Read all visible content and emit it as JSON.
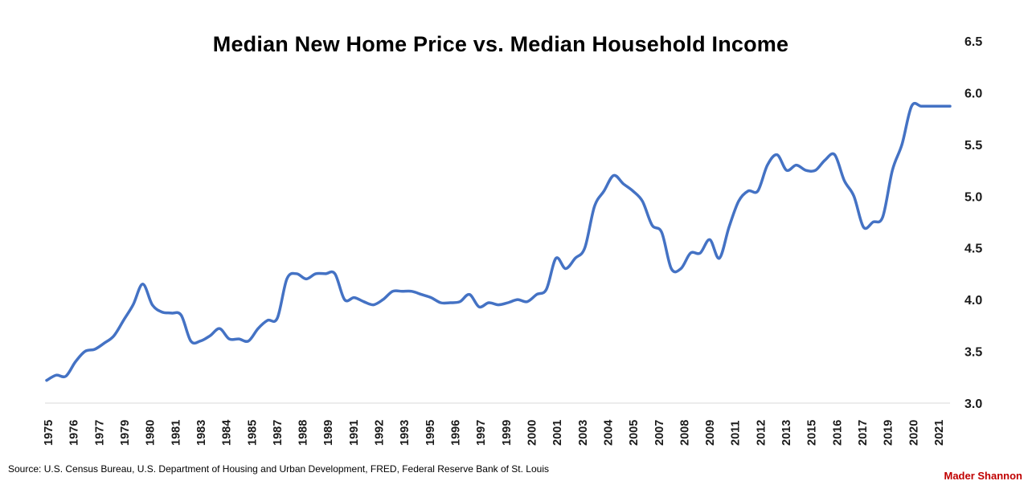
{
  "chart_data": {
    "type": "line",
    "title": "Median New Home Price vs. Median Household Income",
    "xlabel": "",
    "ylabel": "",
    "ylim": [
      3.0,
      6.5
    ],
    "y_ticks": [
      "3.0",
      "3.5",
      "4.0",
      "4.5",
      "5.0",
      "5.5",
      "6.0",
      "6.5"
    ],
    "y_axis_side": "right",
    "grid": false,
    "legend": "none",
    "line_color": "#4472c4",
    "x_tick_labels": [
      "1975",
      "1976",
      "1977",
      "1979",
      "1980",
      "1981",
      "1983",
      "1984",
      "1985",
      "1987",
      "1988",
      "1989",
      "1991",
      "1992",
      "1993",
      "1995",
      "1996",
      "1997",
      "1999",
      "2000",
      "2001",
      "2003",
      "2004",
      "2005",
      "2007",
      "2008",
      "2009",
      "2011",
      "2012",
      "2013",
      "2015",
      "2016",
      "2017",
      "2019",
      "2020",
      "2021"
    ],
    "series": [
      {
        "x": [
          1975.0,
          1975.5,
          1976.0,
          1976.5,
          1977.0,
          1977.5,
          1978.0,
          1978.5,
          1979.0,
          1979.5,
          1980.0,
          1980.5,
          1981.0,
          1981.5,
          1982.0,
          1982.5,
          1983.0,
          1983.5,
          1984.0,
          1984.5,
          1985.0,
          1985.5,
          1986.0,
          1986.5,
          1987.0,
          1987.5,
          1988.0,
          1988.5,
          1989.0,
          1989.5,
          1990.0,
          1990.5,
          1991.0,
          1991.5,
          1992.0,
          1992.5,
          1993.0,
          1993.5,
          1994.0,
          1994.5,
          1995.0,
          1995.5,
          1996.0,
          1996.5,
          1997.0,
          1997.5,
          1998.0,
          1998.5,
          1999.0,
          1999.5,
          2000.0,
          2000.5,
          2001.0,
          2001.5,
          2002.0,
          2002.5,
          2003.0,
          2003.5,
          2004.0,
          2004.5,
          2005.0,
          2005.5,
          2006.0,
          2006.5,
          2007.0,
          2007.5,
          2008.0,
          2008.5,
          2009.0,
          2009.5,
          2010.0,
          2010.5,
          2011.0,
          2011.5,
          2012.0,
          2012.5,
          2013.0,
          2013.5,
          2014.0,
          2014.5,
          2015.0,
          2015.5,
          2016.0,
          2016.5,
          2017.0,
          2017.5,
          2018.0,
          2018.5,
          2019.0,
          2019.5,
          2020.0,
          2020.5,
          2021.0,
          2021.5,
          2022.0
        ],
        "y": [
          3.22,
          3.27,
          3.26,
          3.4,
          3.5,
          3.52,
          3.58,
          3.65,
          3.8,
          3.95,
          4.15,
          3.95,
          3.88,
          3.87,
          3.85,
          3.6,
          3.6,
          3.65,
          3.72,
          3.62,
          3.62,
          3.6,
          3.72,
          3.8,
          3.82,
          4.2,
          4.25,
          4.2,
          4.25,
          4.25,
          4.25,
          4.0,
          4.02,
          3.98,
          3.95,
          4.0,
          4.08,
          4.08,
          4.08,
          4.05,
          4.02,
          3.97,
          3.97,
          3.98,
          4.05,
          3.93,
          3.97,
          3.95,
          3.97,
          4.0,
          3.98,
          4.05,
          4.1,
          4.4,
          4.3,
          4.4,
          4.5,
          4.9,
          5.05,
          5.2,
          5.12,
          5.05,
          4.95,
          4.72,
          4.65,
          4.3,
          4.3,
          4.45,
          4.45,
          4.58,
          4.4,
          4.7,
          4.95,
          5.05,
          5.05,
          5.3,
          5.4,
          5.25,
          5.3,
          5.25,
          5.25,
          5.35,
          5.4,
          5.15,
          5.0,
          4.7,
          4.75,
          4.8,
          5.25,
          5.5,
          5.87,
          5.87,
          5.87,
          5.87,
          5.87
        ]
      }
    ]
  },
  "footer": {
    "source": "Source: U.S. Census Bureau, U.S. Department of Housing and Urban Development, FRED, Federal Reserve Bank of St. Louis",
    "brand": "Mader Shannon"
  }
}
